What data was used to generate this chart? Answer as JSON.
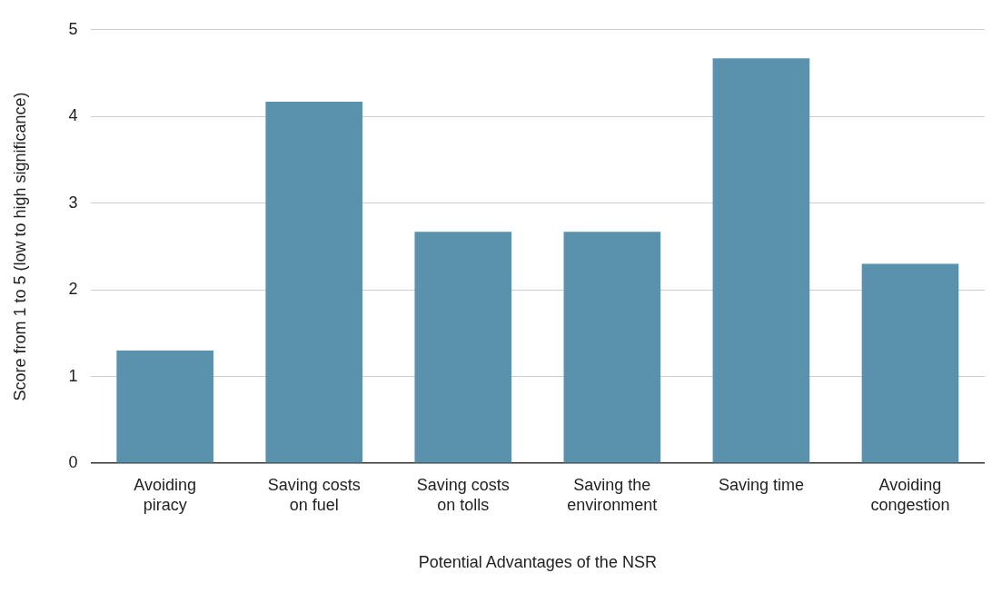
{
  "chart_data": {
    "type": "bar",
    "xlabel": "Potential Advantages of the NSR",
    "ylabel": "Score from 1 to 5 (low to high significance)",
    "categories": [
      "Avoiding piracy",
      "Saving costs on fuel",
      "Saving costs on tolls",
      "Saving the environment",
      "Saving time",
      "Avoiding congestion"
    ],
    "values": [
      1.3,
      4.17,
      2.67,
      2.67,
      4.67,
      2.3
    ],
    "color": "#5a92ae",
    "ylim": [
      0,
      5
    ],
    "yticks": [
      0,
      1,
      2,
      3,
      4,
      5
    ],
    "grid": "y",
    "legend": false
  }
}
